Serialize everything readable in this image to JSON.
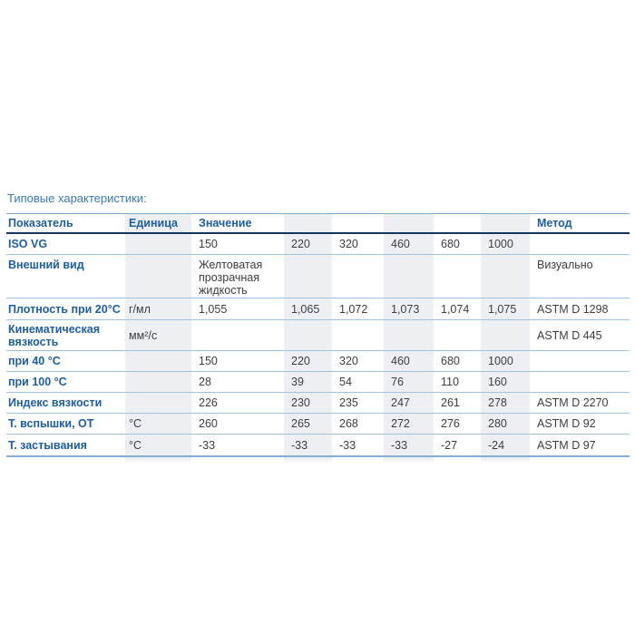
{
  "page": {
    "heading": "Типовые характеристики:"
  },
  "colors": {
    "heading_blue": "#3c7ab9",
    "label_blue": "#1e5ea6",
    "header_rule_dark": "#17365d",
    "row_rule_light": "#a3c2df",
    "outer_rule": "#7fa9d2",
    "band_gray": "#edeff3",
    "value_text": "#3a3f45"
  },
  "table": {
    "header": {
      "col_indicator": "Показатель",
      "col_unit": "Единица",
      "col_value": "Значение",
      "col_method": "Метод"
    },
    "rows": [
      {
        "label": "ISO VG",
        "unit": "",
        "values": [
          "150",
          "220",
          "320",
          "460",
          "680",
          "1000"
        ],
        "method": ""
      },
      {
        "label": "Внешний вид",
        "unit": "",
        "values": [
          "Желтоватая прозрачная жидкость",
          "",
          "",
          "",
          "",
          ""
        ],
        "method": "Визуально"
      },
      {
        "label": "Плотность при 20°С",
        "unit": "г/мл",
        "values": [
          "1,055",
          "1,065",
          "1,072",
          "1,073",
          "1,074",
          "1,075"
        ],
        "method": "ASTM D 1298"
      },
      {
        "label": "Кинематическая вязкость",
        "unit": "мм²/с",
        "values": [
          "",
          "",
          "",
          "",
          "",
          ""
        ],
        "method": "ASTM D 445"
      },
      {
        "label": "при 40 °С",
        "unit": "",
        "values": [
          "150",
          "220",
          "320",
          "460",
          "680",
          "1000"
        ],
        "method": ""
      },
      {
        "label": "при 100 °С",
        "unit": "",
        "values": [
          "28",
          "39",
          "54",
          "76",
          "110",
          "160"
        ],
        "method": ""
      },
      {
        "label": "Индекс вязкости",
        "unit": "",
        "values": [
          "226",
          "230",
          "235",
          "247",
          "261",
          "278"
        ],
        "method": "ASTM D 2270"
      },
      {
        "label": "Т. вспышки, ОТ",
        "unit": "°С",
        "values": [
          "260",
          "265",
          "268",
          "272",
          "276",
          "280"
        ],
        "method": "ASTM D 92"
      },
      {
        "label": "Т. застывания",
        "unit": "°С",
        "values": [
          "-33",
          "-33",
          "-33",
          "-33",
          "-27",
          "-24"
        ],
        "method": "ASTM D 97"
      }
    ]
  }
}
